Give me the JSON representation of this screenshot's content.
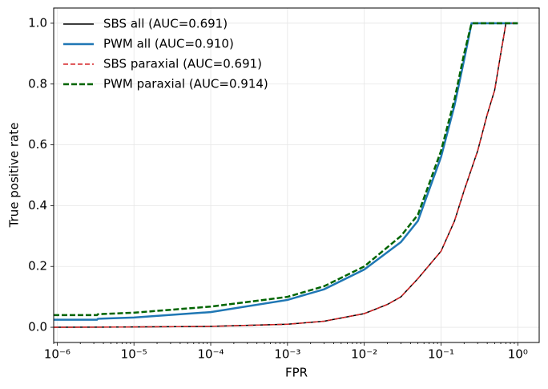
{
  "chart_data": {
    "type": "line",
    "x_label": "FPR",
    "y_label": "True positive rate",
    "xscale": "log",
    "xlim": [
      9e-07,
      1.9
    ],
    "ylim": [
      -0.05,
      1.05
    ],
    "xticks": [
      {
        "value": 1e-06,
        "label": "10⁻⁶"
      },
      {
        "value": 1e-05,
        "label": "10⁻⁵"
      },
      {
        "value": 0.0001,
        "label": "10⁻⁴"
      },
      {
        "value": 0.001,
        "label": "10⁻³"
      },
      {
        "value": 0.01,
        "label": "10⁻²"
      },
      {
        "value": 0.1,
        "label": "10⁻¹"
      },
      {
        "value": 1,
        "label": "10⁰"
      }
    ],
    "yticks": [
      {
        "value": 0,
        "label": "0.0"
      },
      0.2,
      0.4,
      0.6,
      0.8,
      {
        "value": 1,
        "label": "1.0"
      }
    ],
    "grid": true,
    "legend": "upper left",
    "series": [
      {
        "name": "SBS all (AUC=0.691)",
        "color": "#000000",
        "linestyle": "solid",
        "linewidth": 1.5,
        "x": [
          9e-07,
          1e-05,
          0.0001,
          0.001,
          0.003,
          0.01,
          0.02,
          0.03,
          0.05,
          0.1,
          0.15,
          0.2,
          0.3,
          0.4,
          0.5,
          0.6,
          0.68,
          0.7,
          1.0
        ],
        "values": [
          0,
          0.001,
          0.003,
          0.01,
          0.02,
          0.045,
          0.075,
          0.1,
          0.16,
          0.25,
          0.35,
          0.45,
          0.58,
          0.7,
          0.78,
          0.9,
          0.98,
          1.0,
          1.0
        ]
      },
      {
        "name": "PWM all (AUC=0.910)",
        "color": "#1f77b4",
        "linestyle": "solid",
        "linewidth": 2.5,
        "x": [
          9e-07,
          3.3e-06,
          3.4e-06,
          1e-05,
          0.0001,
          0.001,
          0.003,
          0.01,
          0.03,
          0.05,
          0.1,
          0.15,
          0.2,
          0.25,
          1.0
        ],
        "values": [
          0.025,
          0.025,
          0.028,
          0.032,
          0.05,
          0.09,
          0.125,
          0.19,
          0.28,
          0.35,
          0.56,
          0.73,
          0.88,
          1.0,
          1.0
        ]
      },
      {
        "name": "SBS paraxial (AUC=0.691)",
        "color": "#d62728",
        "linestyle": "dashed",
        "linewidth": 1.5,
        "x": [
          9e-07,
          1e-05,
          0.0001,
          0.001,
          0.003,
          0.01,
          0.02,
          0.03,
          0.05,
          0.1,
          0.15,
          0.2,
          0.3,
          0.4,
          0.5,
          0.6,
          0.68,
          0.7,
          1.0
        ],
        "values": [
          0,
          0.001,
          0.003,
          0.01,
          0.02,
          0.045,
          0.075,
          0.1,
          0.16,
          0.25,
          0.35,
          0.45,
          0.58,
          0.7,
          0.78,
          0.9,
          0.98,
          1.0,
          1.0
        ]
      },
      {
        "name": "PWM paraxial (AUC=0.914)",
        "color": "#006400",
        "linestyle": "dashed",
        "linewidth": 2.5,
        "x": [
          9e-07,
          3.3e-06,
          3.4e-06,
          1e-05,
          0.0001,
          0.001,
          0.003,
          0.01,
          0.03,
          0.05,
          0.1,
          0.15,
          0.2,
          0.25,
          1.0
        ],
        "values": [
          0.04,
          0.04,
          0.043,
          0.048,
          0.068,
          0.1,
          0.135,
          0.2,
          0.3,
          0.37,
          0.58,
          0.75,
          0.9,
          1.0,
          1.0
        ]
      }
    ]
  }
}
